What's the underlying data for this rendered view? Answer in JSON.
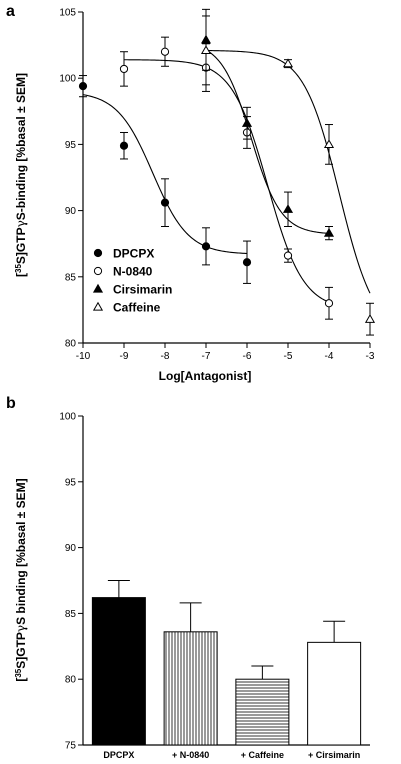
{
  "chart_data": [
    {
      "panel": "a",
      "type": "scatter",
      "xlabel": "Log[Antagonist]",
      "ylabel_parts": [
        "[",
        "35",
        "S]GTP",
        "γ",
        "S-binding [%basal ± SEM]"
      ],
      "xlim": [
        -10,
        -3
      ],
      "ylim": [
        80,
        105
      ],
      "xticks": [
        -10,
        -9,
        -8,
        -7,
        -6,
        -5,
        -4,
        -3
      ],
      "yticks": [
        80,
        85,
        90,
        95,
        100,
        105
      ],
      "grid": false,
      "legend_position": "bottom-left",
      "series": [
        {
          "name": "DPCPX",
          "marker": "circle-filled",
          "x": [
            -10,
            -9,
            -8,
            -7,
            -6
          ],
          "y": [
            99.4,
            94.9,
            90.6,
            87.3,
            86.1
          ],
          "err": [
            0.8,
            1.0,
            1.8,
            1.4,
            1.6
          ],
          "fit": {
            "top": 99.0,
            "bottom": 86.7,
            "logIC50": -8.3,
            "hill": 1.0,
            "x_range": [
              -10,
              -6
            ]
          }
        },
        {
          "name": "N-0840",
          "marker": "circle-open",
          "x": [
            -9,
            -8,
            -7,
            -6,
            -5,
            -4
          ],
          "y": [
            100.7,
            102.0,
            100.8,
            95.9,
            86.6,
            83.0
          ],
          "err": [
            1.3,
            1.1,
            1.8,
            1.2,
            0.5,
            1.2
          ],
          "fit": {
            "top": 101.4,
            "bottom": 82.5,
            "logIC50": -5.5,
            "hill": 1.0,
            "x_range": [
              -9,
              -4
            ]
          }
        },
        {
          "name": "Cirsimarin",
          "marker": "triangle-filled",
          "x": [
            -7,
            -6,
            -5,
            -4
          ],
          "y": [
            102.9,
            96.6,
            90.1,
            88.3
          ],
          "err": [
            2.3,
            1.2,
            1.3,
            0.5
          ],
          "fit": {
            "top": 102.8,
            "bottom": 88.2,
            "logIC50": -5.9,
            "hill": 1.2,
            "x_range": [
              -7,
              -4
            ]
          }
        },
        {
          "name": "Caffeine",
          "marker": "triangle-open",
          "x": [
            -7,
            -5,
            -4,
            -3
          ],
          "y": [
            102.1,
            101.1,
            95.0,
            81.8
          ],
          "err": [
            2.6,
            0.3,
            1.5,
            1.2
          ],
          "fit": {
            "top": 102.1,
            "bottom": 80.5,
            "logIC50": -3.75,
            "hill": 1.0,
            "x_range": [
              -7,
              -3
            ]
          }
        }
      ]
    },
    {
      "panel": "b",
      "type": "bar",
      "ylabel_parts": [
        "[",
        "35",
        "S]GTP",
        "γ",
        "S binding [%basal ± SEM]"
      ],
      "ylim": [
        75,
        100
      ],
      "yticks": [
        75,
        80,
        85,
        90,
        95,
        100
      ],
      "grid": false,
      "categories": [
        "DPCPX",
        "+ N-0840",
        "+ Caffeine",
        "+ Cirsimarin"
      ],
      "values": [
        86.2,
        83.6,
        80.0,
        82.8
      ],
      "err": [
        1.3,
        2.2,
        1.0,
        1.6
      ],
      "fills": [
        "solid-black",
        "vertical-stripes",
        "horizontal-stripes",
        "white"
      ]
    }
  ]
}
